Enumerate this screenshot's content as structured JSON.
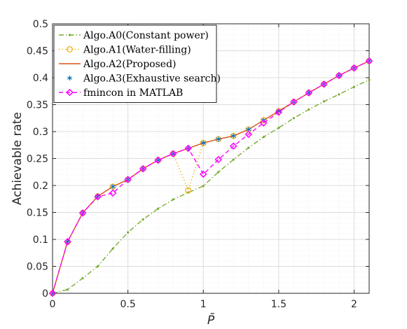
{
  "chart_data": {
    "type": "line",
    "xlabel": "P̄",
    "ylabel": "Achievable rate",
    "xlim": [
      0,
      2.1
    ],
    "ylim": [
      0,
      0.5
    ],
    "xticks": [
      0,
      0.5,
      1,
      1.5,
      2
    ],
    "xtick_labels": [
      "0",
      "0.5",
      "1",
      "1.5",
      "2"
    ],
    "yticks": [
      0,
      0.05,
      0.1,
      0.15,
      0.2,
      0.25,
      0.3,
      0.35,
      0.4,
      0.45,
      0.5
    ],
    "ytick_labels": [
      "0",
      "0.05",
      "0.1",
      "0.15",
      "0.2",
      "0.25",
      "0.3",
      "0.35",
      "0.4",
      "0.45",
      "0.5"
    ],
    "grid": true,
    "minor_grid": true,
    "legend_position": "top-left",
    "series": [
      {
        "name": "Algo.A0(Constant power)",
        "color": "#77ac30",
        "line_style": "dashdot",
        "marker": "dot",
        "x": [
          0,
          0.1,
          0.2,
          0.3,
          0.4,
          0.5,
          0.6,
          0.7,
          0.8,
          0.9,
          1.0,
          1.1,
          1.2,
          1.3,
          1.4,
          1.5,
          1.6,
          1.7,
          1.8,
          1.9,
          2.0,
          2.1
        ],
        "y": [
          0,
          0.007,
          0.028,
          0.05,
          0.083,
          0.113,
          0.137,
          0.157,
          0.174,
          0.187,
          0.199,
          0.225,
          0.248,
          0.27,
          0.29,
          0.307,
          0.325,
          0.341,
          0.356,
          0.369,
          0.383,
          0.396
        ]
      },
      {
        "name": "Algo.A1(Water-filling)",
        "color": "#edb120",
        "line_style": "dotted",
        "marker": "circle",
        "x": [
          0,
          0.1,
          0.2,
          0.3,
          0.4,
          0.5,
          0.6,
          0.7,
          0.8,
          0.9,
          1.0,
          1.1,
          1.2,
          1.3,
          1.4,
          1.5,
          1.6,
          1.7,
          1.8,
          1.9,
          2.0,
          2.1
        ],
        "y": [
          0,
          0.095,
          0.149,
          0.18,
          0.198,
          0.211,
          0.231,
          0.247,
          0.259,
          0.191,
          0.279,
          0.286,
          0.292,
          0.304,
          0.321,
          0.338,
          0.355,
          0.372,
          0.388,
          0.404,
          0.418,
          0.431
        ]
      },
      {
        "name": "Algo.A2(Proposed)",
        "color": "#d95319",
        "line_style": "solid",
        "marker": "none",
        "x": [
          0,
          0.1,
          0.2,
          0.3,
          0.4,
          0.5,
          0.6,
          0.7,
          0.8,
          0.9,
          1.0,
          1.1,
          1.2,
          1.3,
          1.4,
          1.5,
          1.6,
          1.7,
          1.8,
          1.9,
          2.0,
          2.1
        ],
        "y": [
          0,
          0.096,
          0.149,
          0.18,
          0.198,
          0.211,
          0.231,
          0.247,
          0.259,
          0.269,
          0.279,
          0.286,
          0.292,
          0.304,
          0.321,
          0.338,
          0.355,
          0.372,
          0.388,
          0.404,
          0.418,
          0.431
        ]
      },
      {
        "name": "Algo.A3(Exhaustive search)",
        "color": "#0072bd",
        "line_style": "none",
        "marker": "asterisk",
        "x": [
          0,
          0.1,
          0.2,
          0.3,
          0.4,
          0.5,
          0.6,
          0.7,
          0.8,
          0.9,
          1.0,
          1.1,
          1.2,
          1.3,
          1.4,
          1.5,
          1.6,
          1.7,
          1.8,
          1.9,
          2.0,
          2.1
        ],
        "y": [
          0,
          0.096,
          0.149,
          0.18,
          0.198,
          0.211,
          0.231,
          0.247,
          0.259,
          0.269,
          0.279,
          0.286,
          0.292,
          0.304,
          0.321,
          0.338,
          0.355,
          0.372,
          0.388,
          0.404,
          0.418,
          0.431
        ]
      },
      {
        "name": "fmincon in MATLAB",
        "color": "#ff00ff",
        "line_style": "dashed",
        "marker": "diamond",
        "x": [
          0,
          0.1,
          0.2,
          0.3,
          0.4,
          0.5,
          0.6,
          0.7,
          0.8,
          0.9,
          1.0,
          1.1,
          1.2,
          1.3,
          1.4,
          1.5,
          1.6,
          1.7,
          1.8,
          1.9,
          2.0,
          2.1
        ],
        "y": [
          0,
          0.096,
          0.149,
          0.179,
          0.186,
          0.211,
          0.231,
          0.247,
          0.259,
          0.269,
          0.221,
          0.248,
          0.273,
          0.295,
          0.316,
          0.336,
          0.355,
          0.372,
          0.388,
          0.404,
          0.418,
          0.431
        ]
      }
    ]
  }
}
